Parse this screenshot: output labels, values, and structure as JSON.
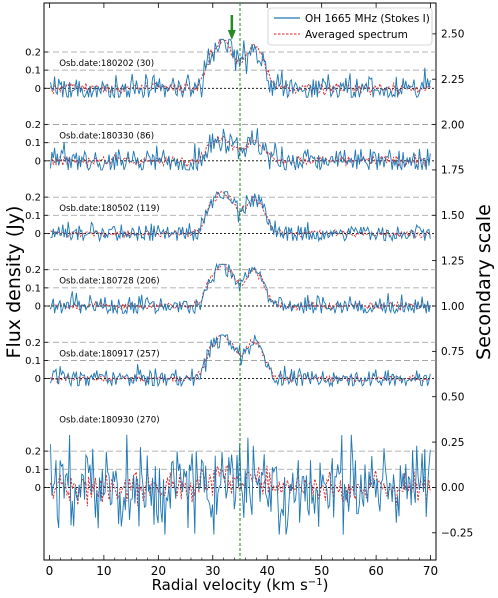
{
  "chart_data": {
    "type": "line",
    "xlabel": "Radial velocity (km s$^{-1}$)",
    "ylabel": "Flux density (Jy)",
    "ylabel_right": "Secondary scale",
    "xlim": [
      -1,
      71
    ],
    "xticks": [
      0,
      10,
      20,
      30,
      40,
      50,
      60,
      70
    ],
    "ylim_right": [
      -0.4,
      2.67
    ],
    "yticks_right": [
      "-0.25",
      "0.00",
      "0.25",
      "0.50",
      "0.75",
      "1.00",
      "1.25",
      "1.50",
      "1.75",
      "2.00",
      "2.25",
      "2.50"
    ],
    "ytick_values_right": [
      -0.25,
      0.0,
      0.25,
      0.5,
      0.75,
      1.0,
      1.25,
      1.5,
      1.75,
      2.0,
      2.25,
      2.5
    ],
    "panel_ytick_labels": [
      "0",
      "0.1",
      "0.2"
    ],
    "vertical_line_x": 35,
    "arrow_x": 33.5,
    "legend": {
      "location": "top-right",
      "entries": [
        {
          "label": "OH 1665 MHz (Stokes I)",
          "color": "#1f77b4",
          "style": "solid"
        },
        {
          "label": "Averaged spectrum",
          "color": "#d62728",
          "style": "dashed"
        }
      ]
    },
    "grid": "horizontal dashed at 0.1 and 0.2 per panel",
    "panels": [
      {
        "label": "Osb.date:180202 (30)",
        "baseline_right": 2.2,
        "noise": 0.042,
        "peak_scale": 1.15,
        "y_min": -0.05,
        "y_max": 0.27
      },
      {
        "label": "Osb.date:180330 (86)",
        "baseline_right": 1.8,
        "noise": 0.04,
        "peak_scale": 0.55,
        "y_min": -0.05,
        "y_max": 0.26
      },
      {
        "label": "Osb.date:180502 (119)",
        "baseline_right": 1.4,
        "noise": 0.028,
        "peak_scale": 1.0,
        "y_min": -0.04,
        "y_max": 0.23
      },
      {
        "label": "Osb.date:180728 (206)",
        "baseline_right": 1.0,
        "noise": 0.03,
        "peak_scale": 1.0,
        "y_min": -0.04,
        "y_max": 0.23
      },
      {
        "label": "Osb.date:180917 (257)",
        "baseline_right": 0.6,
        "noise": 0.03,
        "peak_scale": 1.05,
        "y_min": -0.04,
        "y_max": 0.24
      },
      {
        "label": "Osb.date:180930 (270)",
        "baseline_right": 0.0,
        "noise": 0.13,
        "peak_scale": 0.3,
        "y_min": -0.26,
        "y_max": 0.29
      }
    ],
    "averaged_profile": {
      "components": [
        {
          "center": 29.5,
          "amplitude": 0.13,
          "width": 1.0
        },
        {
          "center": 31.5,
          "amplitude": 0.17,
          "width": 1.0
        },
        {
          "center": 33.5,
          "amplitude": 0.15,
          "width": 1.3
        },
        {
          "center": 37.0,
          "amplitude": 0.16,
          "width": 1.3
        },
        {
          "center": 39.0,
          "amplitude": 0.1,
          "width": 1.2
        }
      ]
    }
  },
  "colors": {
    "stokes": "#1f77b4",
    "averaged": "#d62728",
    "vline": "#228b22",
    "arrow": "#228b22",
    "grid": "#9a9a9a"
  }
}
